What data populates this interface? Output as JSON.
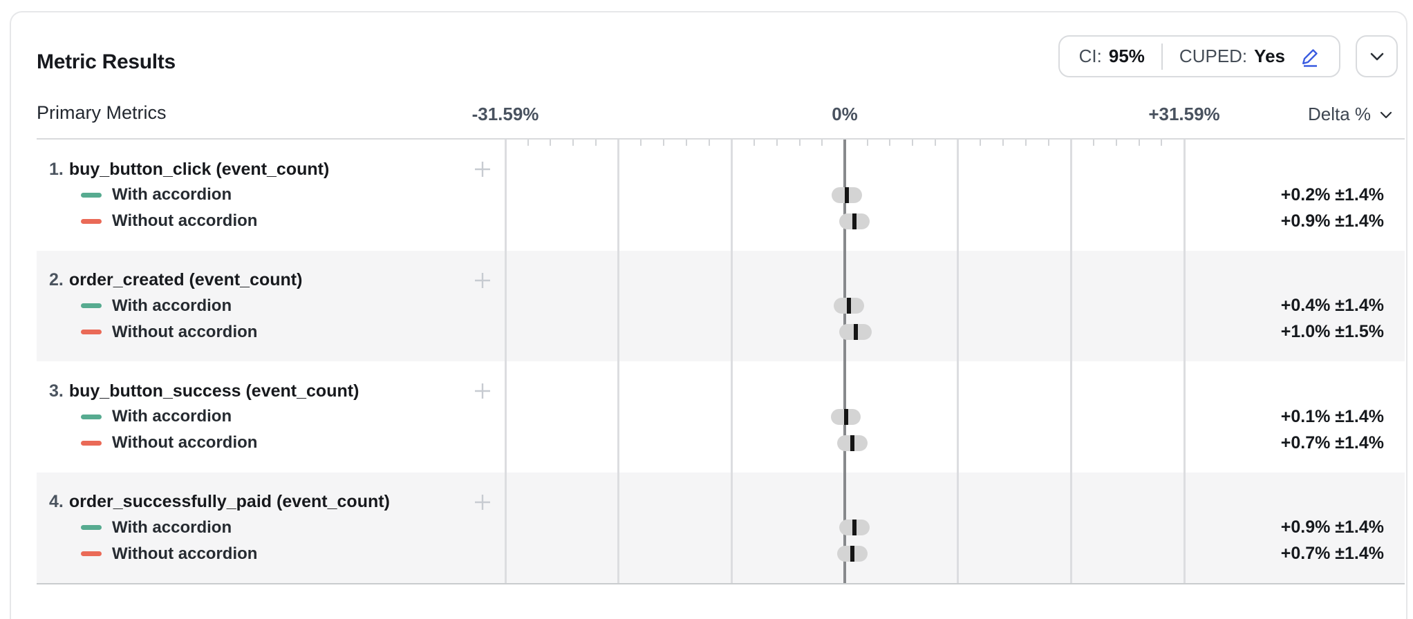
{
  "panel": {
    "title": "Metric Results",
    "controls": {
      "ci_label": "CI:",
      "ci_value": "95%",
      "cuped_label": "CUPED:",
      "cuped_value": "Yes",
      "edit_icon": "pencil-icon",
      "collapse_icon": "chevron-down-icon"
    },
    "section_label": "Primary Metrics",
    "delta_header": "Delta %",
    "sort_icon": "chevron-down-icon"
  },
  "chart_data": {
    "type": "forest-ci",
    "axis": {
      "min": -31.59,
      "max": 31.59,
      "min_label": "-31.59%",
      "zero_label": "0%",
      "max_label": "+31.59%",
      "major_step": 10.53,
      "minors_per_major": 5
    },
    "colors": {
      "with_accordion": "#57ab90",
      "without_accordion": "#ea6a57",
      "bar": "#d4d4d4",
      "marker": "#151515",
      "zero_line": "#87898c",
      "grid": "#dcdde0",
      "stripe": "#f5f5f6",
      "accent_blue": "#3a5ce0"
    },
    "metrics": [
      {
        "index": "1.",
        "name": "buy_button_click (event_count)",
        "variants": [
          {
            "label": "With accordion",
            "color_key": "with_accordion",
            "estimate": 0.2,
            "ci": 1.4,
            "delta_text": "+0.2% ±1.4%"
          },
          {
            "label": "Without accordion",
            "color_key": "without_accordion",
            "estimate": 0.9,
            "ci": 1.4,
            "delta_text": "+0.9% ±1.4%"
          }
        ]
      },
      {
        "index": "2.",
        "name": "order_created (event_count)",
        "variants": [
          {
            "label": "With accordion",
            "color_key": "with_accordion",
            "estimate": 0.4,
            "ci": 1.4,
            "delta_text": "+0.4% ±1.4%"
          },
          {
            "label": "Without accordion",
            "color_key": "without_accordion",
            "estimate": 1.0,
            "ci": 1.5,
            "delta_text": "+1.0% ±1.5%"
          }
        ]
      },
      {
        "index": "3.",
        "name": "buy_button_success (event_count)",
        "variants": [
          {
            "label": "With accordion",
            "color_key": "with_accordion",
            "estimate": 0.1,
            "ci": 1.4,
            "delta_text": "+0.1% ±1.4%"
          },
          {
            "label": "Without accordion",
            "color_key": "without_accordion",
            "estimate": 0.7,
            "ci": 1.4,
            "delta_text": "+0.7% ±1.4%"
          }
        ]
      },
      {
        "index": "4.",
        "name": "order_successfully_paid (event_count)",
        "variants": [
          {
            "label": "With accordion",
            "color_key": "with_accordion",
            "estimate": 0.9,
            "ci": 1.4,
            "delta_text": "+0.9% ±1.4%"
          },
          {
            "label": "Without accordion",
            "color_key": "without_accordion",
            "estimate": 0.7,
            "ci": 1.4,
            "delta_text": "+0.7% ±1.4%"
          }
        ]
      }
    ]
  }
}
